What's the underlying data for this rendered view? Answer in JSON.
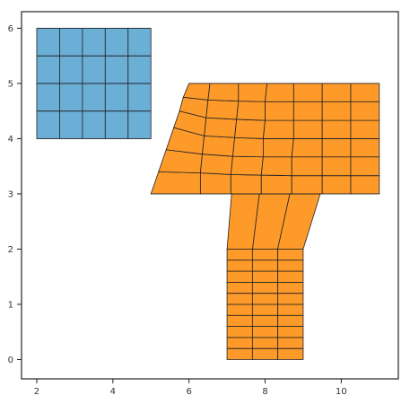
{
  "chart_data": {
    "type": "mesh",
    "title": "",
    "xlabel": "",
    "ylabel": "",
    "xlim": [
      1.6,
      11.5
    ],
    "ylim": [
      -0.35,
      6.3
    ],
    "x_ticks": [
      2,
      4,
      6,
      8,
      10
    ],
    "y_ticks": [
      0,
      1,
      2,
      3,
      4,
      5,
      6
    ],
    "grid": false,
    "legend": "none",
    "colors": {
      "blue_mesh": "#6baed6",
      "orange_mesh": "#fd9a2a",
      "edge": "#222222",
      "axis": "#222222"
    },
    "meshes": [
      {
        "name": "",
        "color_key": "blue_mesh",
        "kind": "grid",
        "x_start": 2,
        "x_end": 5,
        "y_start": 4,
        "y_end": 6,
        "x_cells": 5,
        "y_cells": 4
      },
      {
        "name": "",
        "color_key": "orange_mesh",
        "kind": "grid",
        "x_start": 7,
        "x_end": 9,
        "y_start": 0,
        "y_end": 2,
        "x_cells": 3,
        "y_cells": 10
      },
      {
        "name": "",
        "color_key": "orange_mesh",
        "kind": "node_grid",
        "rows": [
          [
            [
              7.0,
              2.0
            ],
            [
              7.67,
              2.0
            ],
            [
              8.33,
              2.0
            ],
            [
              9.0,
              2.0
            ]
          ],
          [
            [
              7.12,
              3.0
            ],
            [
              7.85,
              3.0
            ],
            [
              8.65,
              3.0
            ],
            [
              9.45,
              3.0
            ]
          ]
        ]
      },
      {
        "name": "",
        "color_key": "orange_mesh",
        "kind": "node_grid",
        "rows": [
          [
            [
              5.0,
              3.0
            ],
            [
              6.3,
              3.0
            ],
            [
              7.1,
              3.0
            ],
            [
              7.9,
              3.0
            ],
            [
              8.7,
              3.0
            ],
            [
              9.5,
              3.0
            ],
            [
              10.25,
              3.0
            ],
            [
              11.0,
              3.0
            ]
          ],
          [
            [
              5.2,
              3.4
            ],
            [
              6.3,
              3.38
            ],
            [
              7.1,
              3.35
            ],
            [
              7.9,
              3.34
            ],
            [
              8.7,
              3.33
            ],
            [
              9.5,
              3.33
            ],
            [
              10.25,
              3.33
            ],
            [
              11.0,
              3.33
            ]
          ],
          [
            [
              5.4,
              3.8
            ],
            [
              6.35,
              3.72
            ],
            [
              7.15,
              3.68
            ],
            [
              7.95,
              3.67
            ],
            [
              8.7,
              3.67
            ],
            [
              9.5,
              3.67
            ],
            [
              10.25,
              3.67
            ],
            [
              11.0,
              3.67
            ]
          ],
          [
            [
              5.6,
              4.2
            ],
            [
              6.4,
              4.05
            ],
            [
              7.2,
              4.02
            ],
            [
              7.95,
              4.0
            ],
            [
              8.75,
              4.0
            ],
            [
              9.5,
              4.0
            ],
            [
              10.25,
              4.0
            ],
            [
              11.0,
              4.0
            ]
          ],
          [
            [
              5.75,
              4.5
            ],
            [
              6.45,
              4.38
            ],
            [
              7.25,
              4.35
            ],
            [
              8.0,
              4.33
            ],
            [
              8.75,
              4.33
            ],
            [
              9.5,
              4.33
            ],
            [
              10.25,
              4.33
            ],
            [
              11.0,
              4.33
            ]
          ],
          [
            [
              5.85,
              4.75
            ],
            [
              6.5,
              4.7
            ],
            [
              7.3,
              4.68
            ],
            [
              8.0,
              4.67
            ],
            [
              8.75,
              4.67
            ],
            [
              9.5,
              4.67
            ],
            [
              10.25,
              4.67
            ],
            [
              11.0,
              4.67
            ]
          ],
          [
            [
              6.0,
              5.0
            ],
            [
              6.55,
              5.0
            ],
            [
              7.3,
              5.0
            ],
            [
              8.05,
              5.0
            ],
            [
              8.75,
              5.0
            ],
            [
              9.5,
              5.0
            ],
            [
              10.25,
              5.0
            ],
            [
              11.0,
              5.0
            ]
          ]
        ]
      }
    ]
  }
}
